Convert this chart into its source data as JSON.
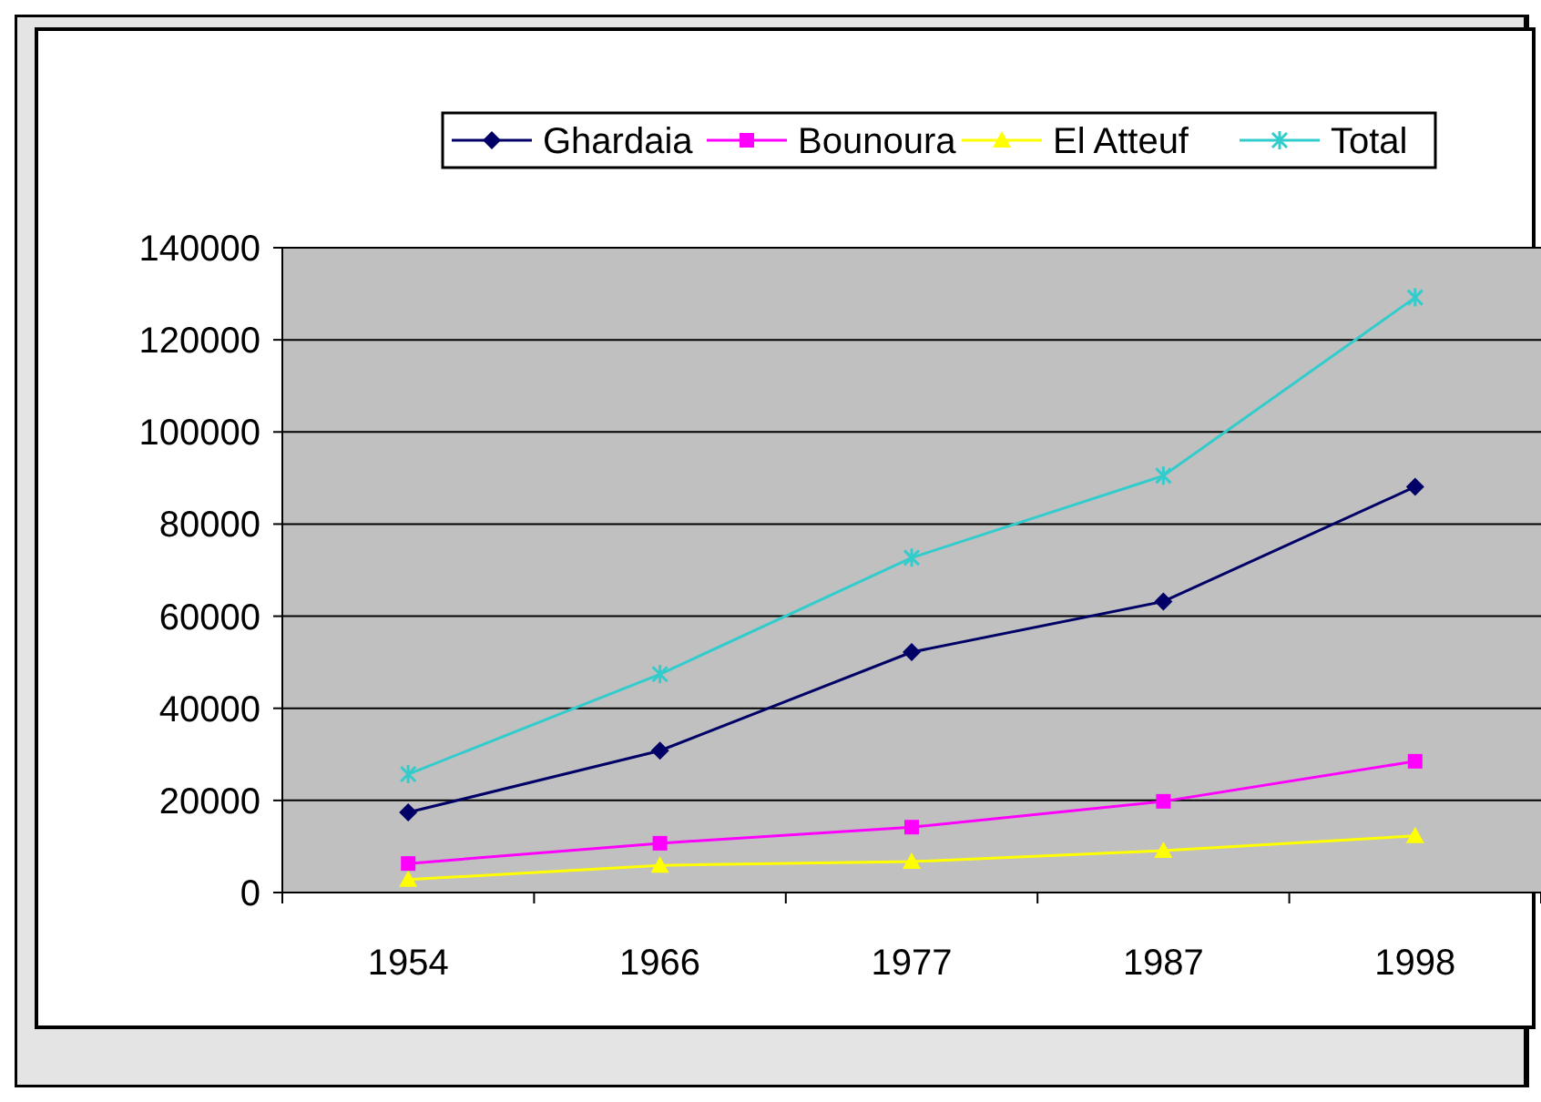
{
  "chart_data": {
    "type": "line",
    "categories": [
      "1954",
      "1966",
      "1977",
      "1987",
      "1998"
    ],
    "series": [
      {
        "name": "Ghardaia",
        "color": "#000066",
        "marker": "diamond",
        "values": [
          17400,
          30800,
          52200,
          63200,
          88100
        ]
      },
      {
        "name": "Bounoura",
        "color": "#ff00ff",
        "marker": "square",
        "values": [
          6300,
          10700,
          14200,
          19800,
          28500
        ]
      },
      {
        "name": "El Atteuf",
        "color": "#ffff00",
        "marker": "triangle",
        "values": [
          2800,
          5900,
          6700,
          9100,
          12300
        ]
      },
      {
        "name": "Total",
        "color": "#33cccc",
        "marker": "cross",
        "values": [
          25700,
          47400,
          72700,
          90500,
          129200
        ]
      }
    ],
    "ylim": [
      0,
      140000
    ],
    "yticks": [
      0,
      20000,
      40000,
      60000,
      80000,
      100000,
      120000,
      140000
    ],
    "grid": "y",
    "legend": "top"
  }
}
